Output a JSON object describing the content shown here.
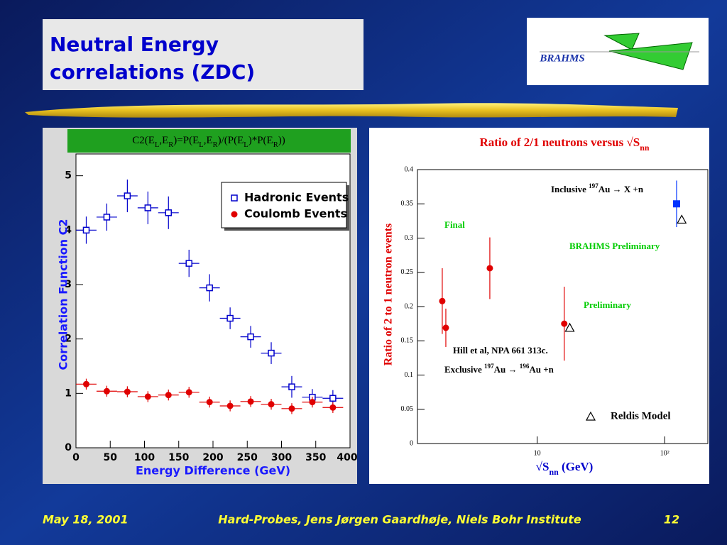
{
  "slide": {
    "title": [
      "Neutral Energy",
      "correlations (ZDC)"
    ],
    "logo": "BRAHMS",
    "footer": {
      "date": "May 18, 2001",
      "event": "Hard-Probes, Jens Jørgen Gaardhøje, Niels Bohr Institute",
      "page": "12"
    }
  },
  "chart_data": [
    {
      "type": "scatter",
      "title": [
        {
          "text": "C2(E"
        },
        {
          "text": "L",
          "sub": true
        },
        {
          "text": ",E"
        },
        {
          "text": "R",
          "sub": true
        },
        {
          "text": ")=P(E"
        },
        {
          "text": "L",
          "sub": true
        },
        {
          "text": ",E"
        },
        {
          "text": "R",
          "sub": true
        },
        {
          "text": ")/(P(E"
        },
        {
          "text": "L",
          "sub": true
        },
        {
          "text": ")*P(E"
        },
        {
          "text": "R",
          "sub": true
        },
        {
          "text": "))"
        }
      ],
      "x_label": "Energy Difference (GeV)",
      "y_label": "Correlation Function C2",
      "x": [
        15,
        45,
        75,
        105,
        135,
        165,
        195,
        225,
        255,
        285,
        315,
        345,
        375
      ],
      "xerrors": [
        15,
        15,
        15,
        15,
        15,
        15,
        15,
        15,
        15,
        15,
        15,
        15,
        15
      ],
      "series": [
        {
          "name": "Hadronic Events",
          "color": "#0000cc",
          "marker": "open-square",
          "values": [
            4.0,
            4.24,
            4.63,
            4.41,
            4.32,
            3.39,
            2.94,
            2.38,
            2.04,
            1.74,
            1.12,
            0.93,
            0.91
          ],
          "errors": [
            0.25,
            0.25,
            0.3,
            0.3,
            0.3,
            0.25,
            0.25,
            0.2,
            0.2,
            0.2,
            0.2,
            0.15,
            0.15
          ]
        },
        {
          "name": "Coulomb Events",
          "color": "#e00000",
          "marker": "circle",
          "values": [
            1.17,
            1.04,
            1.03,
            0.94,
            0.97,
            1.02,
            0.84,
            0.77,
            0.85,
            0.8,
            0.72,
            0.84,
            0.74
          ],
          "errors": [
            0.1,
            0.1,
            0.1,
            0.1,
            0.1,
            0.1,
            0.1,
            0.1,
            0.1,
            0.1,
            0.1,
            0.1,
            0.1
          ]
        }
      ],
      "xlim": [
        0,
        400
      ],
      "xticks": [
        0,
        50,
        100,
        150,
        200,
        250,
        300,
        350,
        400
      ],
      "ylim": [
        0,
        5.4
      ],
      "yticks": [
        0,
        1,
        2,
        3,
        4,
        5
      ],
      "legend": "upper right"
    },
    {
      "type": "scatter",
      "xscale": "log",
      "title": [
        {
          "text": "Ratio of 2/1 neutrons versus √S"
        },
        {
          "text": "nn",
          "sub": true
        }
      ],
      "x_label": [
        {
          "text": "√S"
        },
        {
          "text": "nn",
          "sub": true
        },
        {
          "text": " (GeV)"
        }
      ],
      "y_label": "Ratio of 2 to 1 neutron events",
      "series": [
        {
          "color": "#e00000",
          "marker": "circle",
          "x": [
            1.8,
            1.92,
            4.25,
            16.3
          ],
          "values": [
            0.208,
            0.169,
            0.256,
            0.175
          ],
          "errors": [
            0.048,
            0.028,
            0.045,
            0.054
          ]
        },
        {
          "color": "#0033ff",
          "marker": "square",
          "x": [
            124
          ],
          "values": [
            0.35
          ],
          "errors": [
            0.034
          ]
        },
        {
          "name": "Reldis Model",
          "color": "#000000",
          "marker": "triangle",
          "x": [
            18.0,
            136
          ],
          "values": [
            0.169,
            0.327
          ]
        }
      ],
      "annotations": [
        {
          "color": "#000000",
          "segments": [
            {
              "text": "Inclusive "
            },
            {
              "text": "197",
              "sup": true
            },
            {
              "text": "Au → X +n"
            }
          ]
        },
        {
          "color": "#00cc00",
          "segments": [
            {
              "text": "Final"
            }
          ]
        },
        {
          "color": "#00cc00",
          "segments": [
            {
              "text": "BRAHMS Preliminary"
            }
          ]
        },
        {
          "color": "#00cc00",
          "segments": [
            {
              "text": "Preliminary"
            }
          ]
        },
        {
          "color": "#000000",
          "segments": [
            {
              "text": "Hill et al, NPA 661 313c."
            }
          ]
        },
        {
          "color": "#000000",
          "segments": [
            {
              "text": "Exclusive "
            },
            {
              "text": "197",
              "sup": true
            },
            {
              "text": "Au → "
            },
            {
              "text": "196",
              "sup": true
            },
            {
              "text": "Au +n"
            }
          ]
        }
      ],
      "xlim": [
        1.15,
        218
      ],
      "xticks": [
        10,
        {
          "value": 100,
          "label": "10²"
        }
      ],
      "ylim": [
        0,
        0.4
      ],
      "yticks": [
        0,
        0.05,
        0.1,
        0.15,
        0.2,
        0.25,
        0.3,
        0.35,
        0.4
      ],
      "legend": "lower right"
    }
  ]
}
